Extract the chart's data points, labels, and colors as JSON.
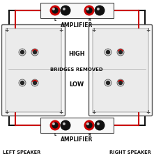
{
  "bg_color": "#ffffff",
  "red_color": "#cc0000",
  "black_color": "#111111",
  "dark_gray": "#333333",
  "mid_gray": "#888888",
  "light_gray": "#e0e0e0",
  "panel_fill": "#f5f5f5",
  "inner_fill": "#ebebeb",
  "text_amplifier_top": "AMPLIFIER",
  "text_amplifier_bot": "AMPLIFIER",
  "text_high": "HIGH",
  "text_bridges": "BRIDGES REMOVED",
  "text_low": "LOW",
  "text_left": "LEFT SPEAKER",
  "text_right": "RIGHT SPEAKER",
  "figsize": [
    2.21,
    2.28
  ],
  "dpi": 100,
  "lw_wire": 1.5,
  "lw_panel": 1.0
}
